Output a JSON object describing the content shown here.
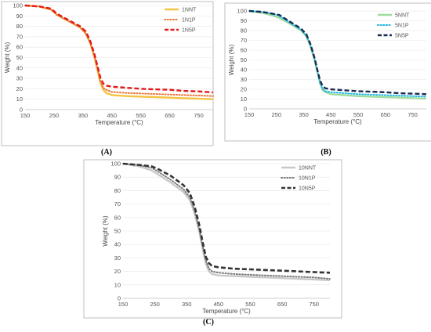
{
  "chart_data": [
    {
      "type": "line",
      "panel_label": "(A)",
      "xlabel": "Temperature (°C)",
      "ylabel": "Weight (%)",
      "xlim": [
        150,
        800
      ],
      "ylim": [
        0,
        100
      ],
      "xticks": [
        150,
        250,
        350,
        450,
        550,
        650,
        750
      ],
      "yticks": [
        0,
        10,
        20,
        30,
        40,
        50,
        60,
        70,
        80,
        90,
        100
      ],
      "grid": "horizontal",
      "legend_position": "top-right",
      "series": [
        {
          "name": "1NNT",
          "color": "#f5c242",
          "dash": "solid",
          "width": 2.4,
          "x": [
            150,
            200,
            240,
            260,
            300,
            340,
            360,
            375,
            390,
            400,
            410,
            420,
            430,
            450,
            500,
            550,
            600,
            650,
            700,
            750,
            800
          ],
          "y": [
            100,
            99,
            96,
            91,
            85,
            79,
            73,
            64,
            50,
            38,
            26,
            19,
            16,
            14,
            13,
            12.5,
            12,
            11.5,
            11,
            10.5,
            10
          ]
        },
        {
          "name": "1N1P",
          "color": "#e8783a",
          "dash": "dot",
          "width": 2.0,
          "x": [
            150,
            200,
            240,
            260,
            300,
            340,
            360,
            375,
            390,
            400,
            410,
            420,
            430,
            450,
            500,
            550,
            600,
            650,
            700,
            750,
            800
          ],
          "y": [
            100,
            99,
            96,
            91,
            85,
            79,
            73,
            64,
            51,
            40,
            28,
            21,
            19,
            17,
            16,
            15.5,
            15,
            14.5,
            14,
            13.5,
            13
          ]
        },
        {
          "name": "1N5P",
          "color": "#e21b1b",
          "dash": "dash",
          "width": 2.4,
          "x": [
            150,
            200,
            240,
            260,
            300,
            340,
            360,
            375,
            390,
            400,
            410,
            420,
            430,
            450,
            500,
            550,
            600,
            650,
            700,
            750,
            800
          ],
          "y": [
            100,
            99,
            97,
            92,
            86,
            80,
            75,
            66,
            53,
            42,
            31,
            25,
            23,
            22,
            21,
            20,
            19.5,
            19,
            18,
            17.5,
            16.5
          ]
        }
      ]
    },
    {
      "type": "line",
      "panel_label": "(B)",
      "xlabel": "Temperature (°C)",
      "ylabel": "Weight (%)",
      "xlim": [
        150,
        800
      ],
      "ylim": [
        0,
        100
      ],
      "xticks": [
        150,
        250,
        350,
        450,
        550,
        650,
        750
      ],
      "yticks": [
        0,
        10,
        20,
        30,
        40,
        50,
        60,
        70,
        80,
        90,
        100
      ],
      "grid": "horizontal",
      "legend_position": "top-right",
      "series": [
        {
          "name": "5NNT",
          "color": "#9edc9e",
          "dash": "solid",
          "width": 2.4,
          "x": [
            150,
            200,
            240,
            260,
            300,
            340,
            360,
            375,
            390,
            400,
            410,
            420,
            430,
            450,
            500,
            550,
            600,
            650,
            700,
            750,
            800
          ],
          "y": [
            100,
            98,
            95,
            93,
            87,
            80,
            74,
            64,
            50,
            38,
            26,
            19,
            17,
            15,
            14,
            13,
            12.5,
            12,
            11.5,
            11,
            10.5
          ]
        },
        {
          "name": "5N1P",
          "color": "#1fb6e6",
          "dash": "dot",
          "width": 2.0,
          "x": [
            150,
            200,
            240,
            260,
            300,
            340,
            360,
            375,
            390,
            400,
            410,
            420,
            430,
            450,
            500,
            550,
            600,
            650,
            700,
            750,
            800
          ],
          "y": [
            100,
            99,
            97,
            95,
            88,
            81,
            75,
            65,
            51,
            39,
            27,
            20,
            18,
            17,
            16,
            15,
            14.5,
            14,
            13.5,
            13,
            12.5
          ]
        },
        {
          "name": "5N5P",
          "color": "#1a2a52",
          "dash": "dash",
          "width": 2.4,
          "x": [
            150,
            200,
            240,
            260,
            300,
            340,
            360,
            375,
            390,
            400,
            410,
            420,
            430,
            450,
            500,
            550,
            600,
            650,
            700,
            750,
            800
          ],
          "y": [
            100,
            99,
            97,
            96,
            89,
            82,
            76,
            66,
            52,
            40,
            29,
            23,
            21,
            20,
            19,
            18,
            17.5,
            17,
            16,
            15.5,
            15
          ]
        }
      ]
    },
    {
      "type": "line",
      "panel_label": "(C)",
      "xlabel": "Temperature (°C)",
      "ylabel": "Weight (%)",
      "xlim": [
        150,
        800
      ],
      "ylim": [
        0,
        100
      ],
      "xticks": [
        150,
        250,
        350,
        450,
        550,
        650,
        750
      ],
      "yticks": [
        0,
        10,
        20,
        30,
        40,
        50,
        60,
        70,
        80,
        90,
        100
      ],
      "grid": "horizontal",
      "legend_position": "top-right",
      "series": [
        {
          "name": "10NNT",
          "color": "#c8c8c8",
          "dash": "solid",
          "width": 2.4,
          "x": [
            150,
            200,
            240,
            260,
            300,
            340,
            360,
            375,
            390,
            400,
            410,
            420,
            430,
            450,
            500,
            550,
            600,
            650,
            700,
            750,
            800
          ],
          "y": [
            100,
            98,
            95,
            92,
            86,
            79,
            73,
            63,
            49,
            37,
            26,
            20,
            18,
            17,
            16.5,
            16,
            15.5,
            15,
            14.5,
            14,
            13.5
          ]
        },
        {
          "name": "10N1P",
          "color": "#7a7a7a",
          "dash": "dot",
          "width": 2.0,
          "x": [
            150,
            200,
            240,
            260,
            300,
            340,
            360,
            375,
            390,
            400,
            410,
            420,
            430,
            450,
            500,
            550,
            600,
            650,
            700,
            750,
            800
          ],
          "y": [
            100,
            99,
            97,
            94,
            88,
            81,
            75,
            65,
            51,
            39,
            28,
            22,
            20,
            19,
            18,
            17.5,
            17,
            16.5,
            16,
            15.5,
            14.5
          ]
        },
        {
          "name": "10N5P",
          "color": "#333333",
          "dash": "dash",
          "width": 2.6,
          "x": [
            150,
            200,
            240,
            260,
            300,
            340,
            360,
            375,
            390,
            400,
            410,
            420,
            430,
            450,
            500,
            550,
            600,
            650,
            700,
            750,
            800
          ],
          "y": [
            100,
            99,
            98,
            96,
            91,
            84,
            78,
            68,
            54,
            42,
            31,
            26,
            24,
            23,
            22,
            21.5,
            21,
            20.5,
            20,
            19.5,
            19
          ]
        }
      ]
    }
  ]
}
